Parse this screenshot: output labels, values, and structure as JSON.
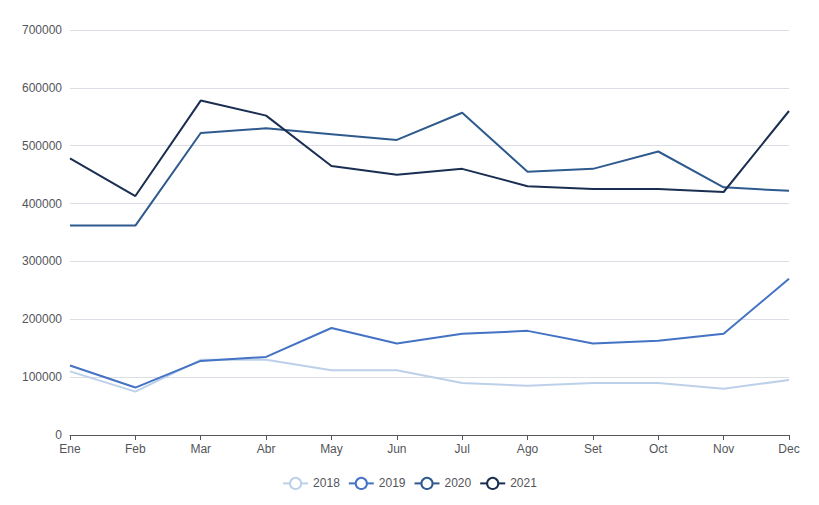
{
  "chart_data": {
    "type": "line",
    "categories": [
      "Ene",
      "Feb",
      "Mar",
      "Abr",
      "May",
      "Jun",
      "Jul",
      "Ago",
      "Set",
      "Oct",
      "Nov",
      "Dec"
    ],
    "series": [
      {
        "name": "2018",
        "color": "#bdd0e9",
        "values": [
          110000,
          75000,
          130000,
          130000,
          112000,
          112000,
          90000,
          85000,
          90000,
          90000,
          80000,
          95000
        ]
      },
      {
        "name": "2019",
        "color": "#4472c4",
        "values": [
          120000,
          82000,
          128000,
          135000,
          185000,
          158000,
          175000,
          180000,
          158000,
          163000,
          175000,
          270000
        ]
      },
      {
        "name": "2020",
        "color": "#2e5a8e",
        "values": [
          362000,
          362000,
          522000,
          530000,
          520000,
          510000,
          557000,
          455000,
          460000,
          490000,
          428000,
          422000
        ]
      },
      {
        "name": "2021",
        "color": "#1a2e52",
        "values": [
          478000,
          413000,
          578000,
          552000,
          465000,
          450000,
          460000,
          430000,
          425000,
          425000,
          420000,
          560000
        ]
      }
    ],
    "ylim": [
      0,
      700000
    ],
    "yticks": [
      0,
      100000,
      200000,
      300000,
      400000,
      500000,
      600000,
      700000
    ],
    "grid": true,
    "legend": "bottom"
  }
}
